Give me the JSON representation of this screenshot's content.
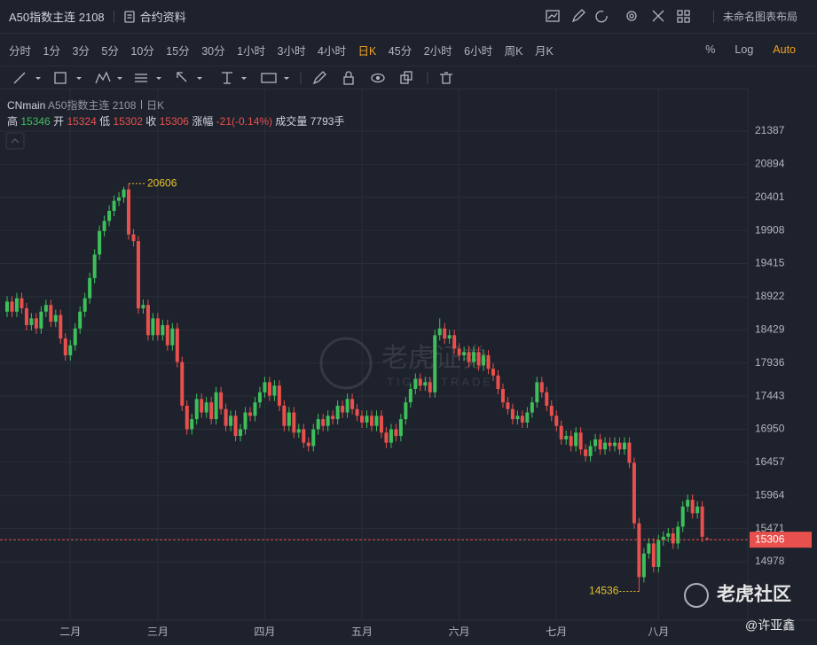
{
  "header": {
    "title": "A50指数主连 2108",
    "contract_info": "合约资料",
    "layout_name": "未命名图表布局"
  },
  "toolbar": {
    "intervals": [
      "分时",
      "1分",
      "3分",
      "5分",
      "10分",
      "15分",
      "30分",
      "1小时",
      "3小时",
      "4小时",
      "日K",
      "45分",
      "2小时",
      "6小时",
      "周K",
      "月K"
    ],
    "active_interval": 10,
    "scale_options": [
      "%",
      "Log",
      "Auto"
    ],
    "active_scale_option": 2
  },
  "chart_data": {
    "type": "candlestick",
    "symbol": "CNmain",
    "name": "A50指数主连 2108",
    "period": "日K",
    "legend_labels": {
      "high": "高",
      "open": "开",
      "low": "低",
      "close": "收",
      "change": "涨幅",
      "volume": "成交量"
    },
    "change_text": "-21(-0.14%)",
    "volume_text": "7793手",
    "categories": [
      null,
      null,
      null,
      null,
      null,
      null,
      null,
      null,
      null,
      null,
      null,
      null,
      null,
      "二月",
      null,
      null,
      null,
      null,
      null,
      null,
      null,
      null,
      null,
      null,
      null,
      null,
      null,
      null,
      null,
      null,
      null,
      "三月",
      null,
      null,
      null,
      null,
      null,
      null,
      null,
      null,
      null,
      null,
      null,
      null,
      null,
      null,
      null,
      null,
      null,
      null,
      null,
      null,
      null,
      "四月",
      null,
      null,
      null,
      null,
      null,
      null,
      null,
      null,
      null,
      null,
      null,
      null,
      null,
      null,
      null,
      null,
      null,
      null,
      null,
      "五月",
      null,
      null,
      null,
      null,
      null,
      null,
      null,
      null,
      null,
      null,
      null,
      null,
      null,
      null,
      null,
      null,
      null,
      null,
      null,
      "六月",
      null,
      null,
      null,
      null,
      null,
      null,
      null,
      null,
      null,
      null,
      null,
      null,
      null,
      null,
      null,
      null,
      null,
      null,
      null,
      "七月",
      null,
      null,
      null,
      null,
      null,
      null,
      null,
      null,
      null,
      null,
      null,
      null,
      null,
      null,
      null,
      null,
      null,
      null,
      null,
      null,
      "八月",
      null,
      null,
      null,
      null,
      null,
      null,
      null,
      null,
      null,
      null
    ],
    "open": [
      18700,
      18850,
      18700,
      18900,
      18750,
      18500,
      18600,
      18450,
      18700,
      18800,
      18550,
      18650,
      18300,
      18050,
      18200,
      18450,
      18700,
      18900,
      19200,
      19550,
      19900,
      20050,
      20200,
      20350,
      20400,
      20520,
      19850,
      19750,
      18750,
      18800,
      18350,
      18600,
      18350,
      18500,
      18200,
      18450,
      17950,
      17300,
      16950,
      17100,
      17400,
      17200,
      17350,
      17100,
      17500,
      17250,
      17000,
      17150,
      16850,
      16950,
      17200,
      17150,
      17350,
      17500,
      17650,
      17450,
      17600,
      17300,
      17000,
      17200,
      16900,
      16950,
      16750,
      16700,
      16950,
      17100,
      17000,
      17150,
      17100,
      17300,
      17200,
      17400,
      17250,
      17150,
      17050,
      17150,
      17000,
      17150,
      16900,
      16750,
      16950,
      16850,
      17100,
      17350,
      17550,
      17700,
      17600,
      17650,
      17500,
      18350,
      18450,
      18300,
      18350,
      18150,
      18050,
      18100,
      17950,
      18100,
      17900,
      18050,
      17850,
      17750,
      17550,
      17350,
      17250,
      17100,
      17150,
      17050,
      17200,
      17350,
      17650,
      17500,
      17300,
      17150,
      17000,
      16800,
      16850,
      16700,
      16900,
      16650,
      16550,
      16700,
      16800,
      16650,
      16750,
      16700,
      16750,
      16650,
      16750,
      16450,
      15550,
      14750,
      15100,
      15250,
      14900,
      15300,
      15350,
      15400,
      15250,
      15500,
      15800,
      15900,
      15700,
      15800,
      15324
    ],
    "high": [
      18930,
      18930,
      18980,
      18980,
      18830,
      18680,
      18680,
      18780,
      18880,
      18880,
      18730,
      18730,
      18380,
      18280,
      18530,
      18780,
      18980,
      19280,
      19630,
      19980,
      20130,
      20280,
      20430,
      20480,
      20560,
      20606,
      19930,
      19830,
      18880,
      18880,
      18680,
      18680,
      18580,
      18580,
      18530,
      18530,
      18030,
      17380,
      17180,
      17480,
      17480,
      17430,
      17430,
      17580,
      17580,
      17330,
      17230,
      17230,
      17030,
      17280,
      17280,
      17430,
      17580,
      17730,
      17730,
      17680,
      17680,
      17380,
      17280,
      17280,
      17030,
      17030,
      16830,
      17030,
      17180,
      17180,
      17230,
      17230,
      17380,
      17380,
      17480,
      17480,
      17330,
      17230,
      17230,
      17230,
      17230,
      17230,
      16980,
      17030,
      17030,
      17180,
      17430,
      17630,
      17780,
      17780,
      17730,
      17730,
      18430,
      18600,
      18530,
      18430,
      18430,
      18230,
      18180,
      18180,
      18180,
      18180,
      18130,
      18130,
      17930,
      17830,
      17630,
      17430,
      17330,
      17230,
      17230,
      17280,
      17430,
      17730,
      17730,
      17580,
      17380,
      17230,
      17080,
      16930,
      16930,
      16980,
      16980,
      16730,
      16780,
      16880,
      16880,
      16830,
      16830,
      16830,
      16830,
      16830,
      16830,
      16530,
      15630,
      15180,
      15330,
      15330,
      15380,
      15430,
      15480,
      15480,
      15580,
      15880,
      15980,
      15980,
      15880,
      15880,
      15346
    ],
    "low": [
      18620,
      18620,
      18620,
      18670,
      18420,
      18420,
      18370,
      18370,
      18620,
      18470,
      18470,
      18220,
      17970,
      17970,
      18120,
      18370,
      18620,
      18820,
      19120,
      19470,
      19820,
      19970,
      20120,
      20270,
      20320,
      19770,
      19670,
      18670,
      18670,
      18270,
      18270,
      18270,
      18270,
      18120,
      18120,
      17870,
      17220,
      16870,
      16870,
      17020,
      17120,
      17120,
      17020,
      17020,
      17170,
      16920,
      16920,
      16770,
      16770,
      16870,
      17070,
      17070,
      17270,
      17420,
      17370,
      17370,
      17220,
      16920,
      16920,
      16820,
      16820,
      16670,
      16620,
      16620,
      16870,
      16920,
      16920,
      17020,
      17020,
      17120,
      17120,
      17170,
      17070,
      16970,
      16970,
      16920,
      16920,
      16820,
      16670,
      16670,
      16770,
      16770,
      17020,
      17270,
      17470,
      17520,
      17520,
      17420,
      17420,
      18270,
      18220,
      18220,
      18070,
      17970,
      17970,
      17870,
      17870,
      17820,
      17820,
      17770,
      17670,
      17470,
      17270,
      17170,
      17020,
      17020,
      16970,
      16970,
      17120,
      17270,
      17420,
      17220,
      17070,
      16920,
      16720,
      16720,
      16620,
      16620,
      16570,
      16470,
      16470,
      16620,
      16570,
      16570,
      16620,
      16620,
      16570,
      16570,
      16370,
      15470,
      14536,
      14670,
      15020,
      14820,
      14820,
      15220,
      15270,
      15170,
      15170,
      15420,
      15720,
      15620,
      15620,
      15270,
      15302
    ],
    "close": [
      18850,
      18700,
      18900,
      18750,
      18500,
      18600,
      18450,
      18700,
      18800,
      18550,
      18650,
      18300,
      18050,
      18200,
      18450,
      18700,
      18900,
      19200,
      19550,
      19900,
      20050,
      20200,
      20350,
      20400,
      20520,
      19850,
      19750,
      18750,
      18800,
      18350,
      18600,
      18350,
      18500,
      18200,
      18450,
      17950,
      17300,
      16950,
      17100,
      17400,
      17200,
      17350,
      17100,
      17500,
      17250,
      17000,
      17150,
      16850,
      16950,
      17200,
      17150,
      17350,
      17500,
      17650,
      17450,
      17600,
      17300,
      17000,
      17200,
      16900,
      16950,
      16750,
      16700,
      16950,
      17100,
      17000,
      17150,
      17100,
      17300,
      17200,
      17400,
      17250,
      17150,
      17050,
      17150,
      17000,
      17150,
      16900,
      16750,
      16950,
      16850,
      17100,
      17350,
      17550,
      17700,
      17600,
      17650,
      17500,
      18350,
      18450,
      18300,
      18350,
      18150,
      18050,
      18100,
      17950,
      18100,
      17900,
      18050,
      17850,
      17750,
      17550,
      17350,
      17250,
      17100,
      17150,
      17050,
      17200,
      17350,
      17650,
      17500,
      17300,
      17150,
      17000,
      16800,
      16850,
      16700,
      16900,
      16650,
      16550,
      16700,
      16800,
      16650,
      16750,
      16700,
      16750,
      16650,
      16750,
      16450,
      15550,
      14750,
      15100,
      15250,
      14900,
      15300,
      15350,
      15400,
      15250,
      15500,
      15800,
      15900,
      15700,
      15800,
      15350,
      15306
    ],
    "up_color": "#3dbf5a",
    "down_color": "#e8504d",
    "extreme_label_color": "#e8c12a",
    "ylim": [
      14108,
      22020
    ],
    "yticks": [
      21387,
      20894,
      20401,
      19908,
      19415,
      18922,
      18429,
      17936,
      17443,
      16950,
      16457,
      15964,
      15471,
      14978
    ],
    "grid": true
  },
  "watermark": {
    "brand": "老虎证券",
    "brand_en": "TIGER TRADE",
    "community": "老虎社区",
    "author": "@许亚鑫"
  }
}
